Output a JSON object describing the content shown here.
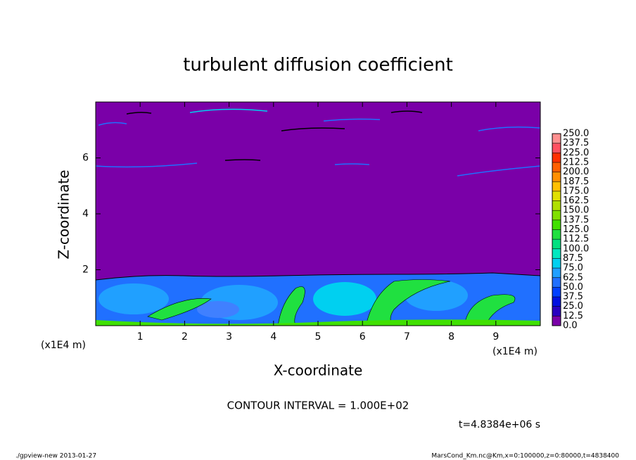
{
  "chart_data": {
    "type": "contour",
    "title": "turbulent diffusion coefficient",
    "xlabel": "X-coordinate",
    "ylabel": "Z-coordinate",
    "x_unit_label": "(x1E4 m)",
    "xlim": [
      0,
      10
    ],
    "xticks": [
      1,
      2,
      3,
      4,
      5,
      6,
      7,
      8,
      9
    ],
    "ylim": [
      0,
      8
    ],
    "yticks": [
      2,
      4,
      6
    ],
    "colorbar": {
      "levels": [
        {
          "value": 0,
          "label": "0.0"
        },
        {
          "value": 12.5,
          "label": "12.5"
        },
        {
          "value": 25,
          "label": "25.0"
        },
        {
          "value": 37.5,
          "label": "37.5"
        },
        {
          "value": 50,
          "label": "50.0"
        },
        {
          "value": 62.5,
          "label": "62.5"
        },
        {
          "value": 75,
          "label": "75.0"
        },
        {
          "value": 87.5,
          "label": "87.5"
        },
        {
          "value": 100,
          "label": "100.0"
        },
        {
          "value": 112.5,
          "label": "112.5"
        },
        {
          "value": 125,
          "label": "125.0"
        },
        {
          "value": 137.5,
          "label": "137.5"
        },
        {
          "value": 150,
          "label": "150.0"
        },
        {
          "value": 162.5,
          "label": "162.5"
        },
        {
          "value": 175,
          "label": "175.0"
        },
        {
          "value": 187.5,
          "label": "187.5"
        },
        {
          "value": 200,
          "label": "200.0"
        },
        {
          "value": 212.5,
          "label": "212.5"
        },
        {
          "value": 225,
          "label": "225.0"
        },
        {
          "value": 237.5,
          "label": "237.5"
        },
        {
          "value": 250,
          "label": "250.0"
        }
      ],
      "colors": [
        "#7a00a8",
        "#2800c0",
        "#0010e0",
        "#0040ff",
        "#2070ff",
        "#20a0ff",
        "#00d0f0",
        "#00e8c0",
        "#00e080",
        "#20e040",
        "#40e000",
        "#80e000",
        "#b0e000",
        "#e0e000",
        "#ffc000",
        "#ff9000",
        "#ff6000",
        "#ff3000",
        "#ff5060",
        "#ff9090"
      ]
    },
    "contour_interval": "CONTOUR INTERVAL = 1.000E+02",
    "time_label": "t=4.8384e+06 s",
    "footer_left": "./gpview-new  2013-01-27",
    "footer_right": "MarsCond_Km.nc@Km,x=0:100000,z=0:80000,t=4838400"
  }
}
